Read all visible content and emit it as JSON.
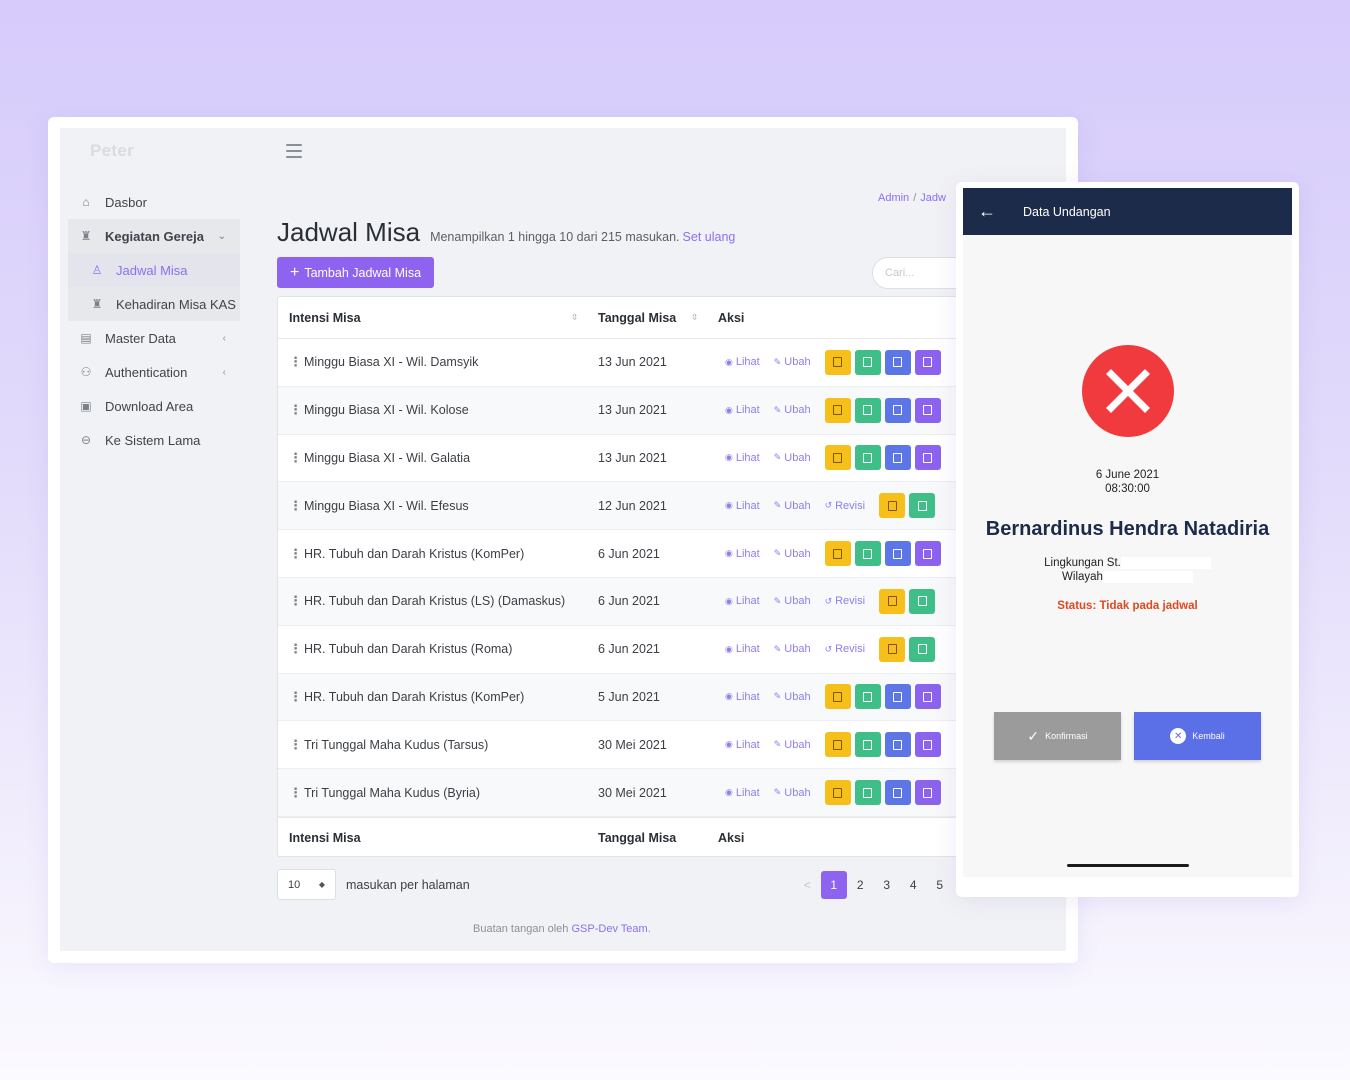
{
  "app": {
    "brand": "Peter"
  },
  "sidebar": {
    "items": [
      {
        "label": "Dasbor",
        "icon": "home-icon"
      },
      {
        "label": "Kegiatan Gereja",
        "icon": "church-icon"
      },
      {
        "label": "Jadwal Misa",
        "icon": "person-icon"
      },
      {
        "label": "Kehadiran Misa KAS",
        "icon": "church-icon"
      },
      {
        "label": "Master Data",
        "icon": "clipboard-icon"
      },
      {
        "label": "Authentication",
        "icon": "user-icon"
      },
      {
        "label": "Download Area",
        "icon": "save-icon"
      },
      {
        "label": "Ke Sistem Lama",
        "icon": "arrow-circle-icon"
      }
    ]
  },
  "breadcrumb": {
    "root": "Admin",
    "sep": "/",
    "current": "Jadw"
  },
  "page": {
    "title": "Jadwal Misa",
    "meta": "Menampilkan 1 hingga 10 dari 215 masukan.",
    "reset": "Set ulang",
    "add_button": "Tambah Jadwal Misa",
    "search_placeholder": "Cari..."
  },
  "table": {
    "headers": {
      "intensi": "Intensi Misa",
      "tanggal": "Tanggal Misa",
      "aksi": "Aksi"
    },
    "link_labels": {
      "lihat": "Lihat",
      "ubah": "Ubah",
      "revisi": "Revisi"
    },
    "rows": [
      {
        "intensi": "Minggu Biasa XI - Wil. Damsyik",
        "tanggal": "13 Jun 2021",
        "revisi": false
      },
      {
        "intensi": "Minggu Biasa XI - Wil. Kolose",
        "tanggal": "13 Jun 2021",
        "revisi": false
      },
      {
        "intensi": "Minggu Biasa XI - Wil. Galatia",
        "tanggal": "13 Jun 2021",
        "revisi": false
      },
      {
        "intensi": "Minggu Biasa XI - Wil. Efesus",
        "tanggal": "12 Jun 2021",
        "revisi": true
      },
      {
        "intensi": "HR. Tubuh dan Darah Kristus (KomPer)",
        "tanggal": "6 Jun 2021",
        "revisi": false
      },
      {
        "intensi": "HR. Tubuh dan Darah Kristus (LS) (Damaskus)",
        "tanggal": "6 Jun 2021",
        "revisi": true
      },
      {
        "intensi": "HR. Tubuh dan Darah Kristus (Roma)",
        "tanggal": "6 Jun 2021",
        "revisi": true
      },
      {
        "intensi": "HR. Tubuh dan Darah Kristus (KomPer)",
        "tanggal": "5 Jun 2021",
        "revisi": false
      },
      {
        "intensi": "Tri Tunggal Maha Kudus (Tarsus)",
        "tanggal": "30 Mei 2021",
        "revisi": false
      },
      {
        "intensi": "Tri Tunggal Maha Kudus (Byria)",
        "tanggal": "30 Mei 2021",
        "revisi": false
      }
    ]
  },
  "pagination": {
    "per_page": "10",
    "per_page_label": "masukan per halaman",
    "prev": "<",
    "pages": [
      "1",
      "2",
      "3",
      "4",
      "5"
    ],
    "current": "1"
  },
  "footer": {
    "text": "Buatan tangan oleh",
    "link": "GSP-Dev Team",
    "end": "."
  },
  "mobile": {
    "appbar_title": "Data Undangan",
    "date": "6 June 2021",
    "time": "08:30:00",
    "name": "Bernardinus Hendra Natadiria",
    "lingkungan": "Lingkungan St.",
    "wilayah": "Wilayah",
    "status": "Status: Tidak pada jadwal",
    "confirm_button": "Konfirmasi",
    "back_button": "Kembali"
  },
  "colors": {
    "accent": "#8d63f0",
    "appbar": "#1d2b4a",
    "error": "#f13a3d",
    "status_text": "#e0481f",
    "btn_yellow": "#f6bf1a",
    "btn_green": "#3fbf87",
    "btn_blue": "#5c76e6",
    "btn_purple": "#8b63ef"
  }
}
